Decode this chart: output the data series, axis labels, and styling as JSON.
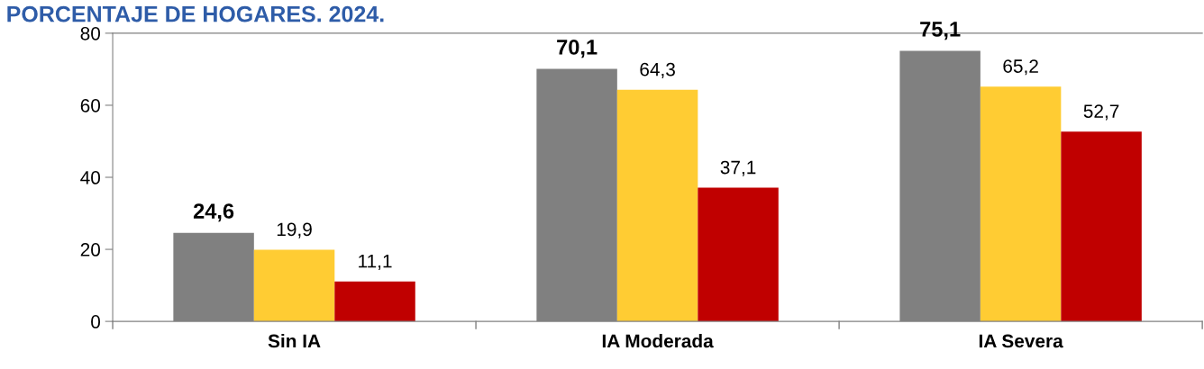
{
  "chart_data": {
    "type": "bar",
    "title": "PORCENTAJE DE HOGARES. 2024.",
    "categories": [
      "Sin IA",
      "IA Moderada",
      "IA Severa"
    ],
    "series": [
      {
        "color": "#808080",
        "values": [
          24.6,
          70.1,
          75.1
        ],
        "value_labels": [
          "24,6",
          "70,1",
          "75,1"
        ]
      },
      {
        "color": "#ffcc33",
        "values": [
          19.9,
          64.3,
          65.2
        ],
        "value_labels": [
          "19,9",
          "64,3",
          "65,2"
        ]
      },
      {
        "color": "#c00000",
        "values": [
          11.1,
          37.1,
          52.7
        ],
        "value_labels": [
          "11,1",
          "37,1",
          "52,7"
        ]
      }
    ],
    "ylim": [
      0,
      80
    ],
    "yticks": [
      0,
      20,
      40,
      60,
      80
    ],
    "grid": false,
    "legend": false
  }
}
